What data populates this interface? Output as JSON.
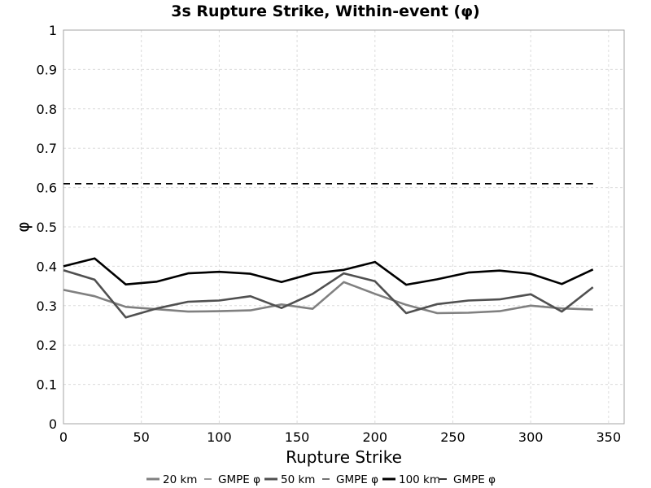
{
  "chart_data": {
    "type": "line",
    "title": "3s Rupture Strike, Within-event (φ)",
    "xlabel": "Rupture Strike",
    "ylabel": "φ",
    "xlim": [
      0,
      360
    ],
    "ylim": [
      0,
      1
    ],
    "xticks": [
      0,
      50,
      100,
      150,
      200,
      250,
      300,
      350
    ],
    "yticks": [
      0,
      0.1,
      0.2,
      0.3,
      0.4,
      0.5,
      0.6,
      0.7,
      0.8,
      0.9,
      1
    ],
    "ytick_labels": [
      "0",
      "0.1",
      "0.2",
      "0.3",
      "0.4",
      "0.5",
      "0.6",
      "0.7",
      "0.8",
      "0.9",
      "1"
    ],
    "grid": true,
    "legend_position": "bottom",
    "x": [
      0,
      20,
      40,
      60,
      80,
      100,
      120,
      140,
      160,
      180,
      200,
      220,
      240,
      260,
      280,
      300,
      320,
      340
    ],
    "series": [
      {
        "name": "20 km",
        "color": "#808080",
        "style": "solid",
        "values": [
          0.34,
          0.324,
          0.297,
          0.291,
          0.285,
          0.286,
          0.288,
          0.303,
          0.292,
          0.36,
          0.33,
          0.302,
          0.281,
          0.282,
          0.286,
          0.3,
          0.293,
          0.29
        ]
      },
      {
        "name": "GMPE φ",
        "color": "#808080",
        "style": "dashed",
        "values": [
          0.61,
          0.61,
          0.61,
          0.61,
          0.61,
          0.61,
          0.61,
          0.61,
          0.61,
          0.61,
          0.61,
          0.61,
          0.61,
          0.61,
          0.61,
          0.61,
          0.61,
          0.61
        ]
      },
      {
        "name": "50 km",
        "color": "#505050",
        "style": "solid",
        "values": [
          0.39,
          0.366,
          0.27,
          0.293,
          0.31,
          0.313,
          0.324,
          0.294,
          0.33,
          0.382,
          0.362,
          0.281,
          0.304,
          0.313,
          0.316,
          0.329,
          0.285,
          0.347
        ]
      },
      {
        "name": "GMPE φ",
        "color": "#505050",
        "style": "dashed",
        "values": [
          0.61,
          0.61,
          0.61,
          0.61,
          0.61,
          0.61,
          0.61,
          0.61,
          0.61,
          0.61,
          0.61,
          0.61,
          0.61,
          0.61,
          0.61,
          0.61,
          0.61,
          0.61
        ]
      },
      {
        "name": "100 km",
        "color": "#000000",
        "style": "solid",
        "values": [
          0.4,
          0.42,
          0.354,
          0.361,
          0.382,
          0.386,
          0.381,
          0.36,
          0.382,
          0.391,
          0.411,
          0.353,
          0.367,
          0.384,
          0.389,
          0.381,
          0.355,
          0.392
        ]
      },
      {
        "name": "GMPE φ",
        "color": "#000000",
        "style": "dashed",
        "values": [
          0.61,
          0.61,
          0.61,
          0.61,
          0.61,
          0.61,
          0.61,
          0.61,
          0.61,
          0.61,
          0.61,
          0.61,
          0.61,
          0.61,
          0.61,
          0.61,
          0.61,
          0.61
        ]
      }
    ]
  }
}
